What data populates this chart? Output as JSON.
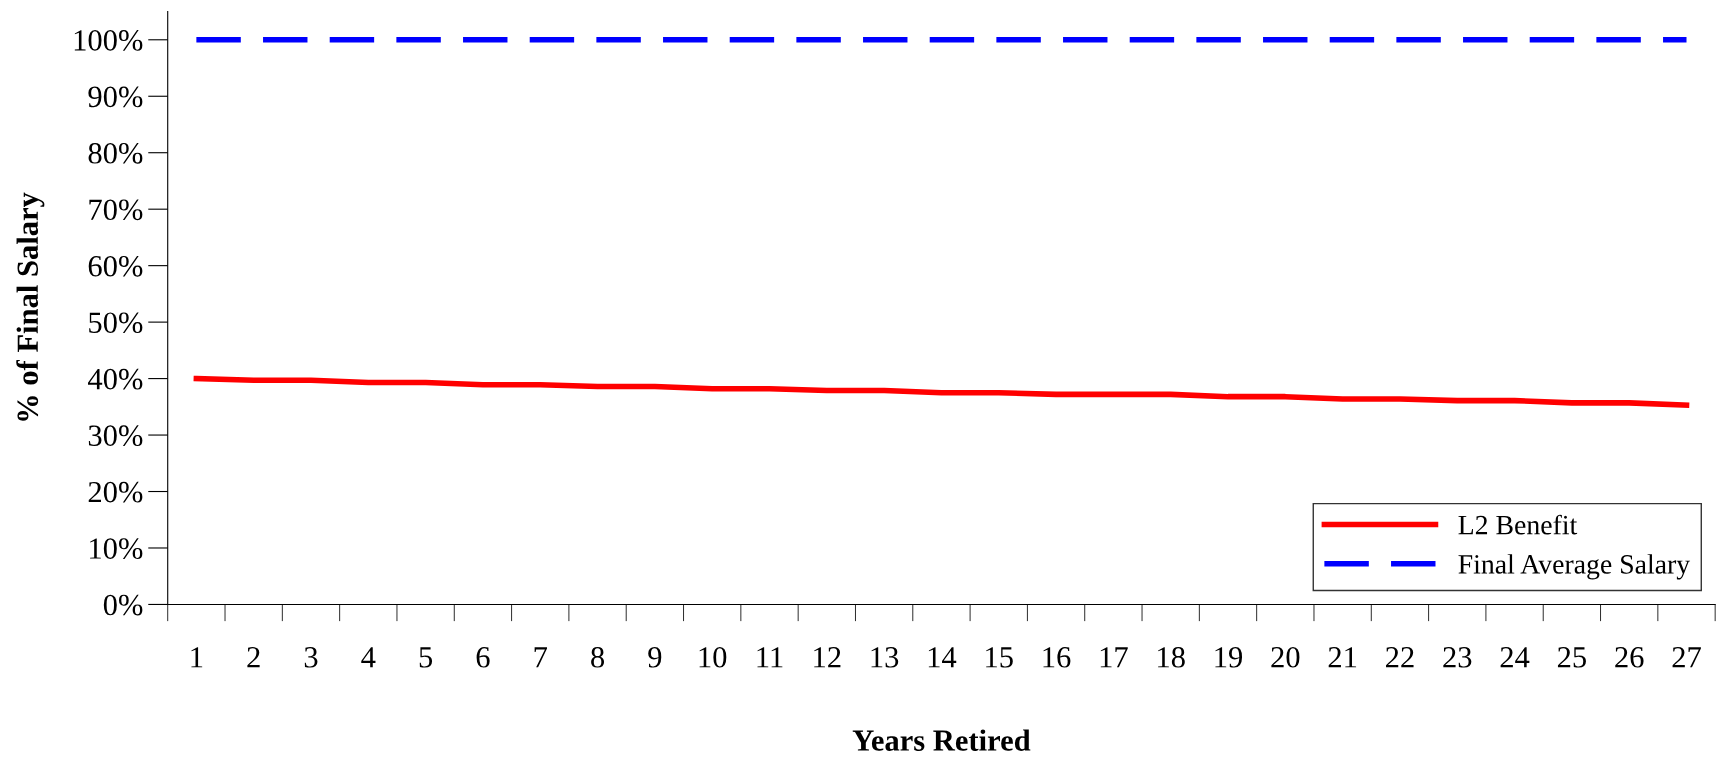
{
  "chart_data": {
    "type": "line",
    "xlabel": "Years Retired",
    "ylabel": "% of Final Salary",
    "categories": [
      "1",
      "2",
      "3",
      "4",
      "5",
      "6",
      "7",
      "8",
      "9",
      "10",
      "11",
      "12",
      "13",
      "14",
      "15",
      "16",
      "17",
      "18",
      "19",
      "20",
      "21",
      "22",
      "23",
      "24",
      "25",
      "26",
      "27"
    ],
    "series": [
      {
        "name": "L2 Benefit",
        "color": "#ff0000",
        "line_style": "solid",
        "values": [
          40.0,
          39.7,
          39.7,
          39.3,
          39.3,
          38.9,
          38.9,
          38.6,
          38.6,
          38.2,
          38.2,
          37.9,
          37.9,
          37.5,
          37.5,
          37.2,
          37.2,
          37.2,
          36.8,
          36.8,
          36.4,
          36.4,
          36.1,
          36.1,
          35.7,
          35.7,
          35.3
        ]
      },
      {
        "name": "Final Average Salary",
        "color": "#0000ff",
        "line_style": "dashed",
        "values": [
          100,
          100,
          100,
          100,
          100,
          100,
          100,
          100,
          100,
          100,
          100,
          100,
          100,
          100,
          100,
          100,
          100,
          100,
          100,
          100,
          100,
          100,
          100,
          100,
          100,
          100,
          100
        ]
      }
    ],
    "ylim": [
      0,
      105
    ],
    "yticks": [
      {
        "value": 0,
        "label": "0%"
      },
      {
        "value": 10,
        "label": "10%"
      },
      {
        "value": 20,
        "label": "20%"
      },
      {
        "value": 30,
        "label": "30%"
      },
      {
        "value": 40,
        "label": "40%"
      },
      {
        "value": 50,
        "label": "50%"
      },
      {
        "value": 60,
        "label": "60%"
      },
      {
        "value": 70,
        "label": "70%"
      },
      {
        "value": 80,
        "label": "80%"
      },
      {
        "value": 90,
        "label": "90%"
      },
      {
        "value": 100,
        "label": "100%"
      }
    ],
    "grid": false,
    "legend": "bottom right",
    "marker": "none"
  }
}
